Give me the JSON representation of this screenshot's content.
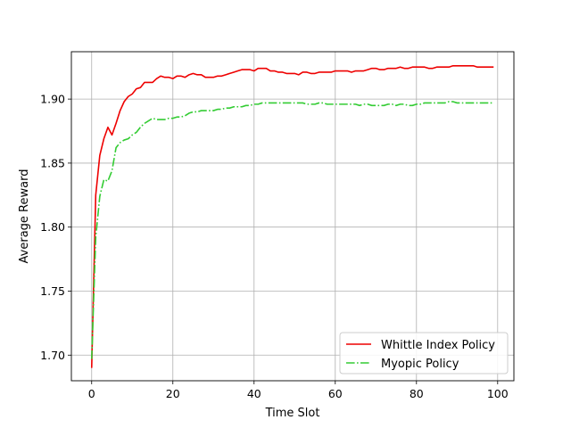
{
  "chart_data": {
    "type": "line",
    "xlabel": "Time Slot",
    "ylabel": "Average Reward",
    "xlim": [
      -5,
      104
    ],
    "ylim": [
      1.68,
      1.937
    ],
    "xticks": [
      0,
      20,
      40,
      60,
      80,
      100
    ],
    "yticks": [
      1.7,
      1.75,
      1.8,
      1.85,
      1.9
    ],
    "xtick_labels": [
      "0",
      "20",
      "40",
      "60",
      "80",
      "100"
    ],
    "ytick_labels": [
      "1.70",
      "1.75",
      "1.80",
      "1.85",
      "1.90"
    ],
    "grid": true,
    "legend_position": "lower-right",
    "series": [
      {
        "name": "Whittle Index Policy",
        "color": "#ee0000",
        "style": "solid",
        "x": [
          0,
          1,
          2,
          3,
          4,
          5,
          6,
          7,
          8,
          9,
          10,
          11,
          12,
          13,
          14,
          15,
          16,
          17,
          18,
          19,
          20,
          21,
          22,
          23,
          24,
          25,
          26,
          27,
          28,
          29,
          30,
          31,
          32,
          33,
          34,
          35,
          36,
          37,
          38,
          39,
          40,
          41,
          42,
          43,
          44,
          45,
          46,
          47,
          48,
          49,
          50,
          51,
          52,
          53,
          54,
          55,
          56,
          57,
          58,
          59,
          60,
          61,
          62,
          63,
          64,
          65,
          66,
          67,
          68,
          69,
          70,
          71,
          72,
          73,
          74,
          75,
          76,
          77,
          78,
          79,
          80,
          81,
          82,
          83,
          84,
          85,
          86,
          87,
          88,
          89,
          90,
          91,
          92,
          93,
          94,
          95,
          96,
          97,
          98,
          99
        ],
        "values": [
          1.69,
          1.825,
          1.856,
          1.869,
          1.878,
          1.872,
          1.881,
          1.891,
          1.898,
          1.902,
          1.904,
          1.908,
          1.909,
          1.913,
          1.913,
          1.913,
          1.916,
          1.918,
          1.917,
          1.917,
          1.916,
          1.918,
          1.918,
          1.917,
          1.919,
          1.92,
          1.919,
          1.919,
          1.917,
          1.917,
          1.917,
          1.918,
          1.918,
          1.919,
          1.92,
          1.921,
          1.922,
          1.923,
          1.923,
          1.923,
          1.922,
          1.924,
          1.924,
          1.924,
          1.922,
          1.922,
          1.921,
          1.921,
          1.92,
          1.92,
          1.92,
          1.919,
          1.921,
          1.921,
          1.92,
          1.92,
          1.921,
          1.921,
          1.921,
          1.921,
          1.922,
          1.922,
          1.922,
          1.922,
          1.921,
          1.922,
          1.922,
          1.922,
          1.923,
          1.924,
          1.924,
          1.923,
          1.923,
          1.924,
          1.924,
          1.924,
          1.925,
          1.924,
          1.924,
          1.925,
          1.925,
          1.925,
          1.925,
          1.924,
          1.924,
          1.925,
          1.925,
          1.925,
          1.925,
          1.926,
          1.926,
          1.926,
          1.926,
          1.926,
          1.926,
          1.925,
          1.925,
          1.925,
          1.925,
          1.925
        ]
      },
      {
        "name": "Myopic Policy",
        "color": "#33cc33",
        "style": "dashdot",
        "x": [
          0,
          1,
          2,
          3,
          4,
          5,
          6,
          7,
          8,
          9,
          10,
          11,
          12,
          13,
          14,
          15,
          16,
          17,
          18,
          19,
          20,
          21,
          22,
          23,
          24,
          25,
          26,
          27,
          28,
          29,
          30,
          31,
          32,
          33,
          34,
          35,
          36,
          37,
          38,
          39,
          40,
          41,
          42,
          43,
          44,
          45,
          46,
          47,
          48,
          49,
          50,
          51,
          52,
          53,
          54,
          55,
          56,
          57,
          58,
          59,
          60,
          61,
          62,
          63,
          64,
          65,
          66,
          67,
          68,
          69,
          70,
          71,
          72,
          73,
          74,
          75,
          76,
          77,
          78,
          79,
          80,
          81,
          82,
          83,
          84,
          85,
          86,
          87,
          88,
          89,
          90,
          91,
          92,
          93,
          94,
          95,
          96,
          97,
          98,
          99
        ],
        "values": [
          1.697,
          1.792,
          1.824,
          1.837,
          1.836,
          1.844,
          1.862,
          1.866,
          1.868,
          1.869,
          1.872,
          1.874,
          1.878,
          1.881,
          1.883,
          1.885,
          1.884,
          1.884,
          1.884,
          1.885,
          1.885,
          1.886,
          1.886,
          1.887,
          1.889,
          1.89,
          1.89,
          1.891,
          1.891,
          1.891,
          1.891,
          1.892,
          1.892,
          1.893,
          1.893,
          1.894,
          1.894,
          1.894,
          1.895,
          1.895,
          1.896,
          1.896,
          1.897,
          1.897,
          1.897,
          1.897,
          1.897,
          1.897,
          1.897,
          1.897,
          1.897,
          1.897,
          1.897,
          1.896,
          1.896,
          1.896,
          1.897,
          1.897,
          1.896,
          1.896,
          1.896,
          1.896,
          1.896,
          1.896,
          1.896,
          1.896,
          1.895,
          1.896,
          1.896,
          1.895,
          1.895,
          1.895,
          1.895,
          1.896,
          1.896,
          1.895,
          1.896,
          1.896,
          1.895,
          1.895,
          1.896,
          1.896,
          1.897,
          1.897,
          1.897,
          1.897,
          1.897,
          1.897,
          1.898,
          1.898,
          1.897,
          1.897,
          1.897,
          1.897,
          1.897,
          1.897,
          1.897,
          1.897,
          1.897,
          1.897
        ]
      }
    ]
  }
}
